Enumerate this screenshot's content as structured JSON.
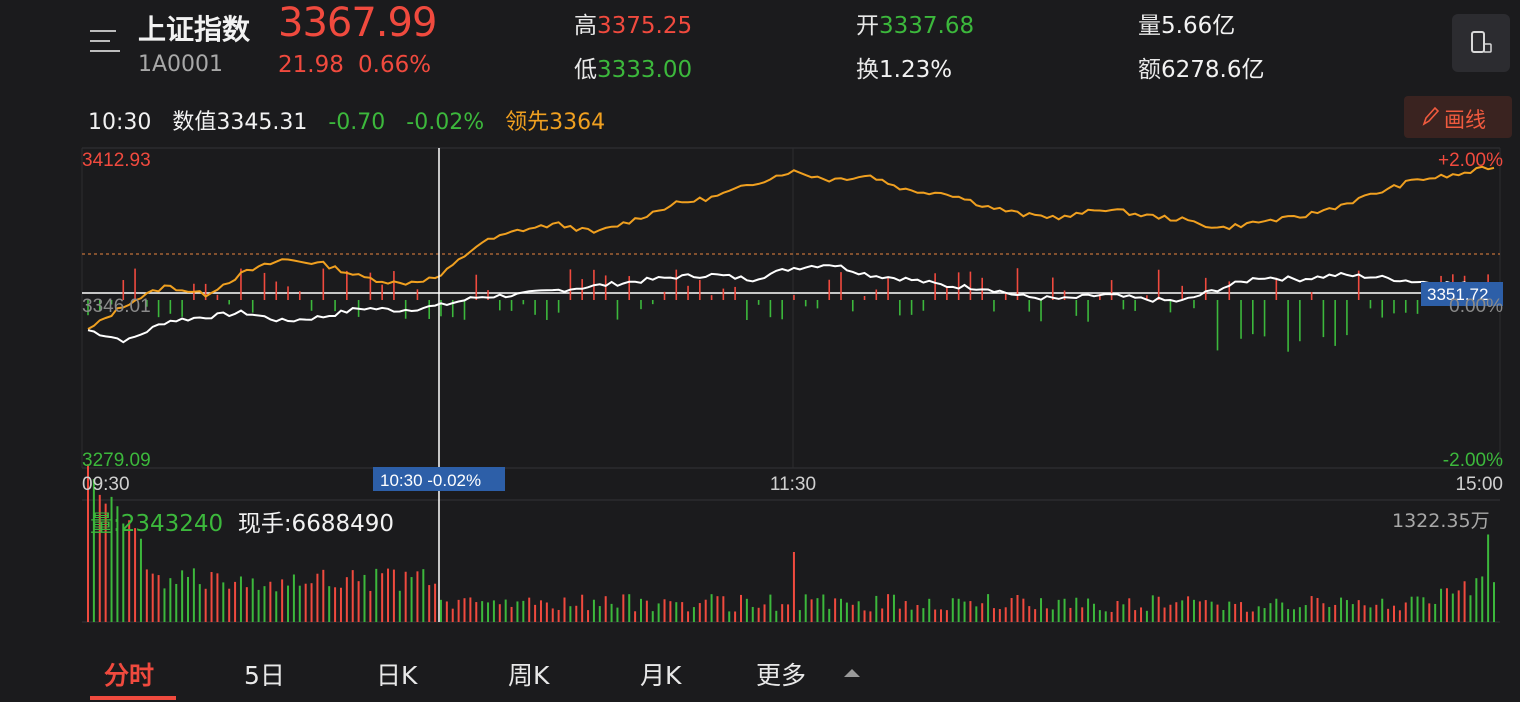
{
  "header": {
    "title": "上证指数",
    "code": "1A0001",
    "price": "3367.99",
    "change": "21.98",
    "change_pct": "0.66%",
    "stats": [
      {
        "label": "高",
        "value": "3375.25",
        "color": "red"
      },
      {
        "label": "低",
        "value": "3333.00",
        "color": "green"
      },
      {
        "label": "开",
        "value": "3337.68",
        "color": "green"
      },
      {
        "label": "换",
        "value": "1.23%",
        "color": "white"
      },
      {
        "label": "量",
        "value": "5.66亿",
        "color": "white"
      },
      {
        "label": "额",
        "value": "6278.6亿",
        "color": "white"
      }
    ],
    "menu_icon": "menu-lines-icon",
    "device_icon": "phone-rotate-icon"
  },
  "crosshair": {
    "time": "10:30",
    "value_label": "数值3345.31",
    "change": "-0.70",
    "change_pct": "-0.02%",
    "lead": "领先3364",
    "x_tag": "10:30  -0.02%",
    "y_tag": "3351.72"
  },
  "draw_button": {
    "label": "画线",
    "icon": "pencil-icon"
  },
  "chart": {
    "y_max": "3412.93",
    "y_min": "3279.09",
    "y_mid_hidden": "3346.01",
    "pct_top": "+2.00%",
    "pct_mid": "0.00%",
    "pct_bottom": "-2.00%",
    "x_start": "09:30",
    "x_mid": "11:30",
    "x_end": "15:00",
    "prev_close": 3346.01,
    "price_range": [
      3279.09,
      3412.93
    ],
    "colors": {
      "up": "#f04a3e",
      "down": "#3cb83c",
      "lead": "#f0a020",
      "price": "#ffffff",
      "tag": "#2d5fa8"
    }
  },
  "volume": {
    "label": "量:2343240",
    "hand_label": "现手:6688490",
    "max_label": "1322.35万"
  },
  "tabs": [
    {
      "label": "分时",
      "active": true
    },
    {
      "label": "5日",
      "active": false
    },
    {
      "label": "日K",
      "active": false
    },
    {
      "label": "周K",
      "active": false
    },
    {
      "label": "月K",
      "active": false
    },
    {
      "label": "更多",
      "active": false
    }
  ],
  "chart_data": {
    "type": "line",
    "x_range": [
      "09:30",
      "15:00"
    ],
    "ylim": [
      3279.09,
      3412.93
    ],
    "series": [],
    "price_keypoints": [
      3336,
      3331,
      3340,
      3342,
      3344,
      3340,
      3342,
      3346,
      3345,
      3347,
      3351,
      3352,
      3354,
      3356,
      3358,
      3360,
      3361,
      3359,
      3364,
      3366,
      3361,
      3359,
      3356,
      3355,
      3351,
      3350,
      3352,
      3350,
      3349,
      3355,
      3360,
      3359,
      3361,
      3360,
      3358,
      3357,
      3356
    ],
    "lead_keypoints": [
      3336,
      3348,
      3356,
      3352,
      3362,
      3368,
      3366,
      3360,
      3357,
      3360,
      3375,
      3381,
      3384,
      3380,
      3386,
      3393,
      3396,
      3402,
      3408,
      3404,
      3406,
      3399,
      3398,
      3392,
      3388,
      3387,
      3391,
      3388,
      3386,
      3382,
      3385,
      3387,
      3392,
      3398,
      3404,
      3406,
      3410
    ]
  }
}
